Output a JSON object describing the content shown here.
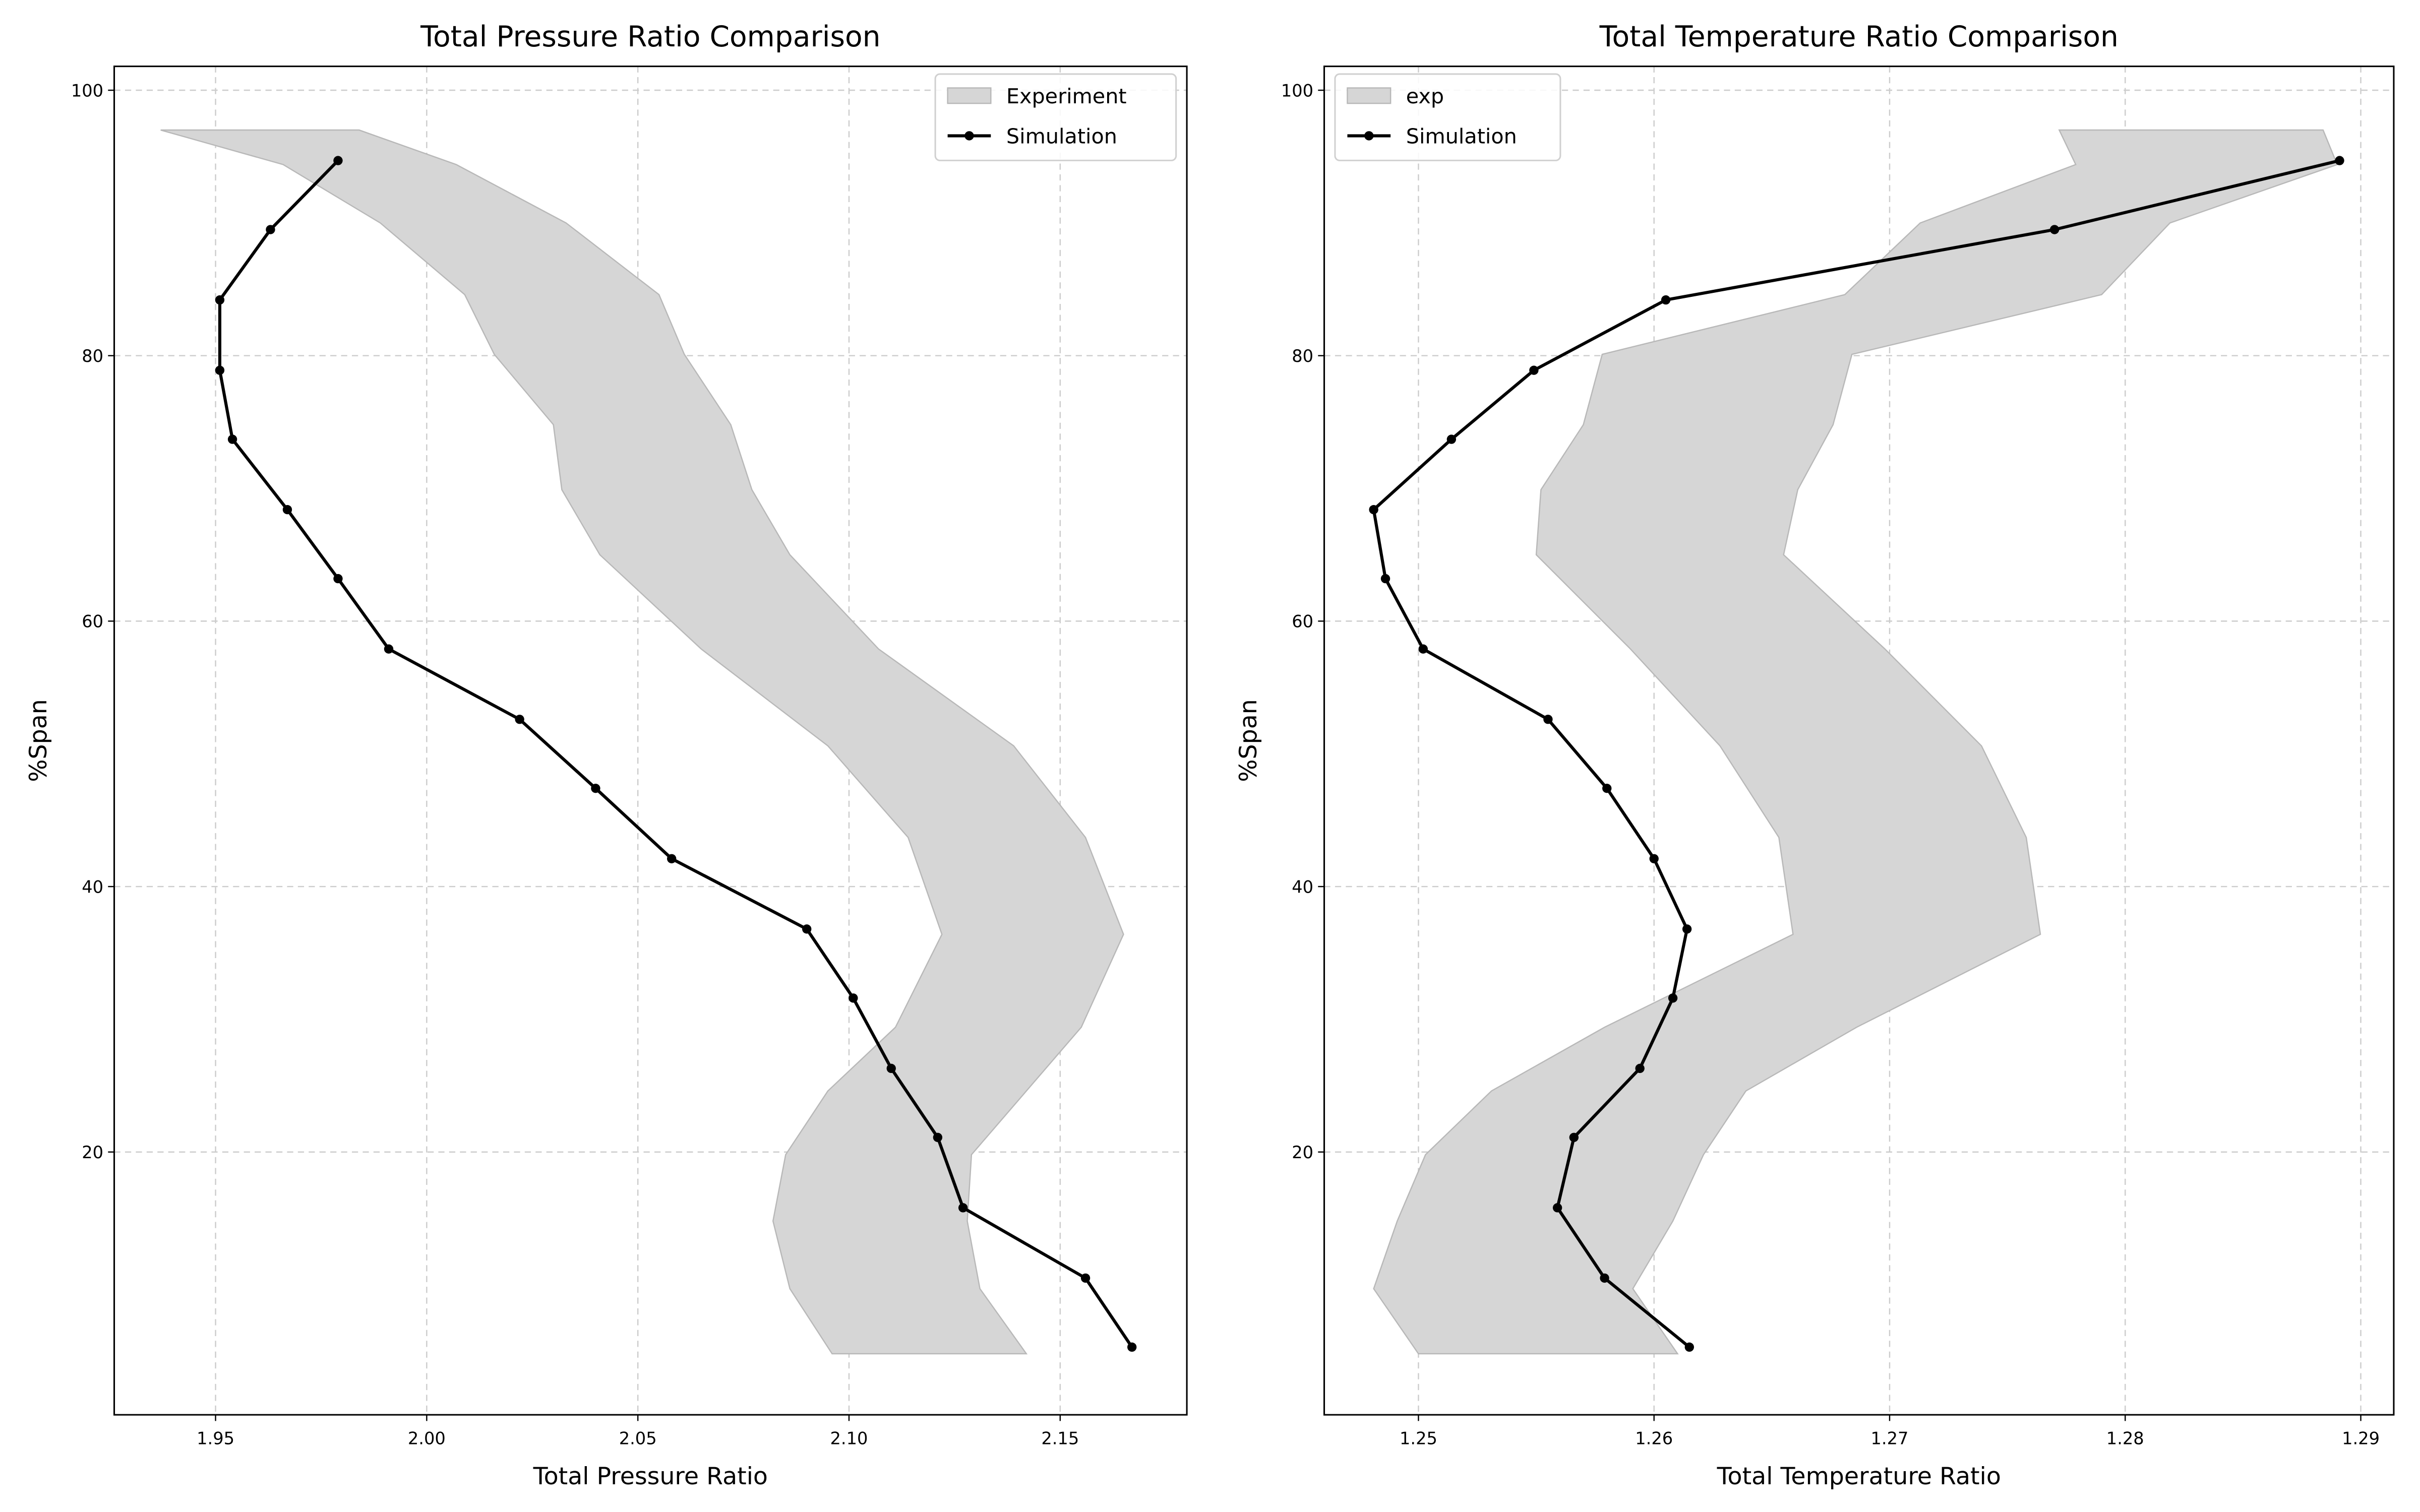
{
  "chart_data": [
    {
      "type": "line",
      "title": "Total Pressure Ratio Comparison",
      "xlabel": "Total Pressure Ratio",
      "ylabel": "%Span",
      "xlim": [
        1.926,
        2.18
      ],
      "ylim": [
        0.2,
        101.8
      ],
      "xticks": [
        "1.95",
        "2.00",
        "2.05",
        "2.10",
        "2.15"
      ],
      "xtick_values": [
        1.95,
        2.0,
        2.05,
        2.1,
        2.15
      ],
      "yticks": [
        "20",
        "40",
        "60",
        "80",
        "100"
      ],
      "ytick_values": [
        20,
        40,
        60,
        80,
        100
      ],
      "grid": true,
      "legend_position": "top-right",
      "band": {
        "name": "Experiment",
        "color": "#d6d6d6",
        "span": [
          97.0,
          94.4,
          90.0,
          84.6,
          80.1,
          74.8,
          69.9,
          65.0,
          57.9,
          50.6,
          43.7,
          36.4,
          29.4,
          24.6,
          19.8,
          14.8,
          9.7,
          4.8
        ],
        "lower": [
          1.937,
          1.966,
          1.989,
          2.009,
          2.016,
          2.03,
          2.032,
          2.041,
          2.065,
          2.095,
          2.114,
          2.122,
          2.111,
          2.095,
          2.085,
          2.082,
          2.086,
          2.096
        ],
        "upper": [
          1.984,
          2.007,
          2.033,
          2.055,
          2.061,
          2.072,
          2.077,
          2.086,
          2.107,
          2.139,
          2.156,
          2.165,
          2.155,
          2.142,
          2.129,
          2.128,
          2.131,
          2.142
        ]
      },
      "series": [
        {
          "name": "Simulation",
          "color": "#000000",
          "span": [
            94.7,
            89.5,
            84.2,
            78.9,
            73.7,
            68.4,
            63.2,
            57.9,
            52.6,
            47.4,
            42.1,
            36.8,
            31.6,
            26.3,
            21.1,
            15.8,
            10.5,
            5.3
          ],
          "values": [
            1.979,
            1.963,
            1.951,
            1.951,
            1.954,
            1.967,
            1.979,
            1.991,
            2.022,
            2.04,
            2.058,
            2.09,
            2.101,
            2.11,
            2.121,
            2.127,
            2.156,
            2.167
          ]
        }
      ]
    },
    {
      "type": "line",
      "title": "Total Temperature Ratio Comparison",
      "xlabel": "Total Temperature Ratio",
      "ylabel": "%Span",
      "xlim": [
        1.246,
        1.2914
      ],
      "ylim": [
        0.2,
        101.8
      ],
      "xticks": [
        "1.25",
        "1.26",
        "1.27",
        "1.28",
        "1.29"
      ],
      "xtick_values": [
        1.25,
        1.26,
        1.27,
        1.28,
        1.29
      ],
      "yticks": [
        "20",
        "40",
        "60",
        "80",
        "100"
      ],
      "ytick_values": [
        20,
        40,
        60,
        80,
        100
      ],
      "grid": true,
      "legend_position": "top-left",
      "band": {
        "name": "exp",
        "color": "#d6d6d6",
        "span": [
          97.0,
          94.4,
          90.0,
          84.6,
          80.1,
          74.8,
          69.9,
          65.0,
          57.9,
          50.6,
          43.7,
          36.4,
          29.4,
          24.6,
          19.8,
          14.8,
          9.7,
          4.8
        ],
        "lower": [
          1.2772,
          1.2779,
          1.2713,
          1.2681,
          1.2578,
          1.257,
          1.2552,
          1.255,
          1.259,
          1.2628,
          1.2653,
          1.2659,
          1.2579,
          1.2531,
          1.2503,
          1.2491,
          1.2481,
          1.25
        ],
        "upper": [
          1.2884,
          1.289,
          1.2819,
          1.279,
          1.2684,
          1.2676,
          1.2661,
          1.2655,
          1.2698,
          1.2739,
          1.2758,
          1.2764,
          1.2686,
          1.2639,
          1.2621,
          1.2608,
          1.2591,
          1.261
        ]
      },
      "series": [
        {
          "name": "Simulation",
          "color": "#000000",
          "span": [
            94.7,
            89.5,
            84.2,
            78.9,
            73.7,
            68.4,
            63.2,
            57.9,
            52.6,
            47.4,
            42.1,
            36.8,
            31.6,
            26.3,
            21.1,
            15.8,
            10.5,
            5.3
          ],
          "values": [
            1.2891,
            1.277,
            1.2605,
            1.2549,
            1.2514,
            1.2481,
            1.2486,
            1.2502,
            1.2555,
            1.258,
            1.26,
            1.2614,
            1.2608,
            1.2594,
            1.2566,
            1.2559,
            1.2579,
            1.2615
          ]
        }
      ]
    }
  ]
}
